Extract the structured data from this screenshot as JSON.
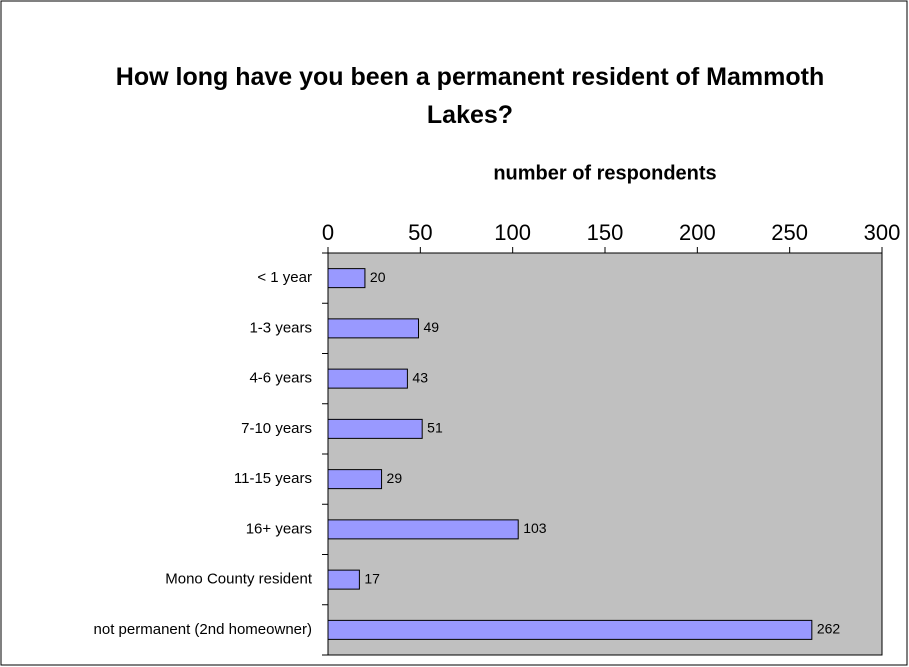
{
  "chart_data": {
    "type": "bar",
    "title": "How long have you been a permanent resident of Mammoth Lakes?",
    "x_label": "number of respondents",
    "categories": [
      "< 1 year",
      "1-3 years",
      "4-6 years",
      "7-10 years",
      "11-15 years",
      "16+ years",
      "Mono County resident",
      "not permanent (2nd homeowner)"
    ],
    "values": [
      20,
      49,
      43,
      51,
      29,
      103,
      17,
      262
    ],
    "color": "#9999ff",
    "plot_background": "#c0c0c0",
    "xlim": [
      0,
      300
    ],
    "xticks": [
      0,
      50,
      100,
      150,
      200,
      250,
      300
    ]
  }
}
